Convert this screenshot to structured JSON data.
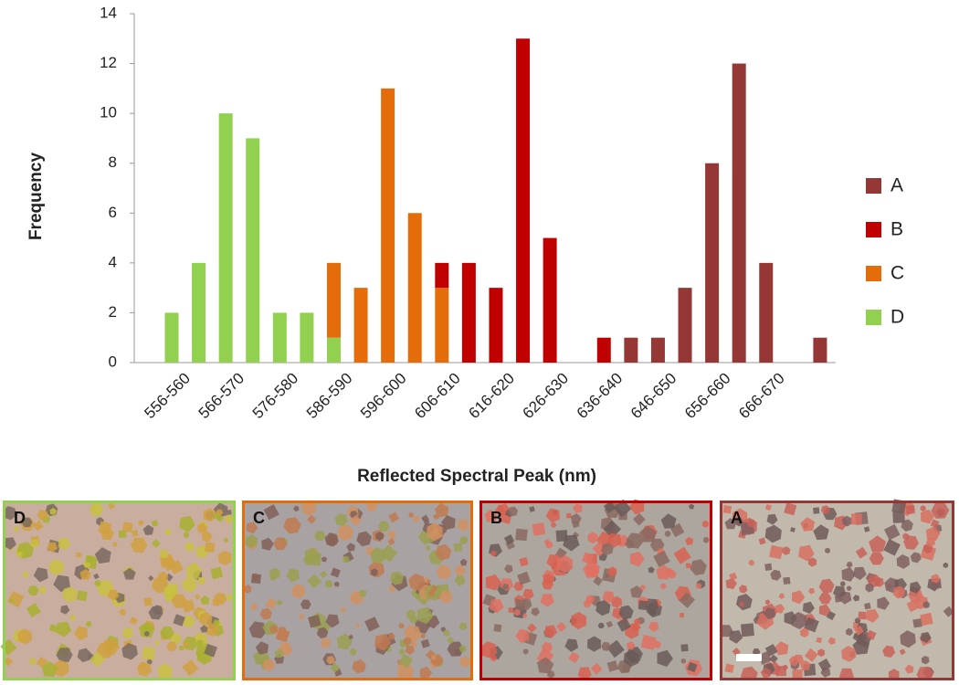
{
  "chart_data": {
    "type": "bar",
    "stacked": true,
    "x_label": "Reflected Spectral Peak (nm)",
    "y_label": "Frequency",
    "categories": [
      "556-560",
      null,
      "566-570",
      null,
      "576-580",
      null,
      "586-590",
      null,
      "596-600",
      null,
      "606-610",
      null,
      "616-620",
      null,
      "626-630",
      null,
      "636-640",
      null,
      "646-650",
      null,
      "656-660",
      null,
      "666-670",
      null,
      null
    ],
    "series": [
      {
        "name": "D",
        "color": "#92d050",
        "values": [
          2,
          4,
          10,
          9,
          2,
          2,
          1,
          0,
          0,
          0,
          0,
          0,
          0,
          0,
          0,
          0,
          0,
          0,
          0,
          0,
          0,
          0,
          0,
          0,
          0
        ]
      },
      {
        "name": "C",
        "color": "#e46c0a",
        "values": [
          0,
          0,
          0,
          0,
          0,
          0,
          3,
          3,
          11,
          6,
          3,
          0,
          0,
          0,
          0,
          0,
          0,
          0,
          0,
          0,
          0,
          0,
          0,
          0,
          0
        ]
      },
      {
        "name": "B",
        "color": "#c00000",
        "values": [
          0,
          0,
          0,
          0,
          0,
          0,
          0,
          0,
          0,
          0,
          1,
          4,
          3,
          13,
          5,
          0,
          1,
          0,
          0,
          0,
          0,
          0,
          0,
          0,
          0
        ]
      },
      {
        "name": "A",
        "color": "#953735",
        "values": [
          0,
          0,
          0,
          0,
          0,
          0,
          0,
          0,
          0,
          0,
          0,
          0,
          0,
          0,
          0,
          0,
          0,
          1,
          1,
          3,
          8,
          12,
          4,
          0,
          1
        ]
      }
    ],
    "ylim": [
      0,
      14
    ],
    "yticks": [
      0,
      2,
      4,
      6,
      8,
      10,
      12,
      14
    ],
    "grid": false,
    "legend": "right"
  },
  "panels": [
    {
      "label": "D",
      "color": "#92d050"
    },
    {
      "label": "C",
      "color": "#e46c0a"
    },
    {
      "label": "B",
      "color": "#c00000"
    },
    {
      "label": "A",
      "color": "#953735"
    }
  ]
}
